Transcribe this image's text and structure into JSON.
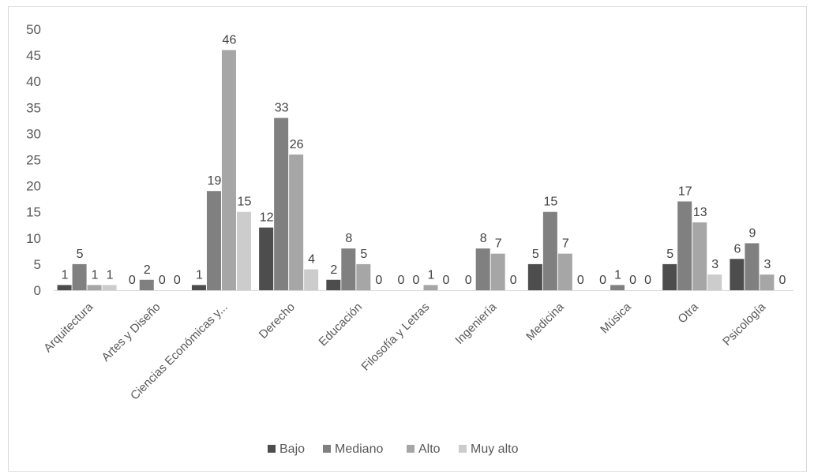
{
  "chart_data": {
    "type": "bar",
    "title": "",
    "xlabel": "",
    "ylabel": "",
    "ylim": [
      0,
      50
    ],
    "yticks": [
      0,
      5,
      10,
      15,
      20,
      25,
      30,
      35,
      40,
      45,
      50
    ],
    "grid": false,
    "legend_position": "bottom",
    "categories": [
      "Arquitectura",
      "Artes y Diseño",
      "Ciencias Económicas y...",
      "Derecho",
      "Educación",
      "Filosofía y Letras",
      "Ingeniería",
      "Medicina",
      "Música",
      "Otra",
      "Psicología"
    ],
    "series": [
      {
        "name": "Bajo",
        "color": "#4d4d4d",
        "values": [
          1,
          0,
          1,
          12,
          2,
          0,
          0,
          5,
          0,
          5,
          6
        ]
      },
      {
        "name": "Mediano",
        "color": "#808080",
        "values": [
          5,
          2,
          19,
          33,
          8,
          0,
          8,
          15,
          1,
          17,
          9
        ]
      },
      {
        "name": "Alto",
        "color": "#a6a6a6",
        "values": [
          1,
          0,
          46,
          26,
          5,
          1,
          7,
          7,
          0,
          13,
          3
        ]
      },
      {
        "name": "Muy alto",
        "color": "#cccccc",
        "values": [
          1,
          0,
          15,
          4,
          0,
          0,
          0,
          0,
          0,
          3,
          0
        ]
      }
    ]
  }
}
